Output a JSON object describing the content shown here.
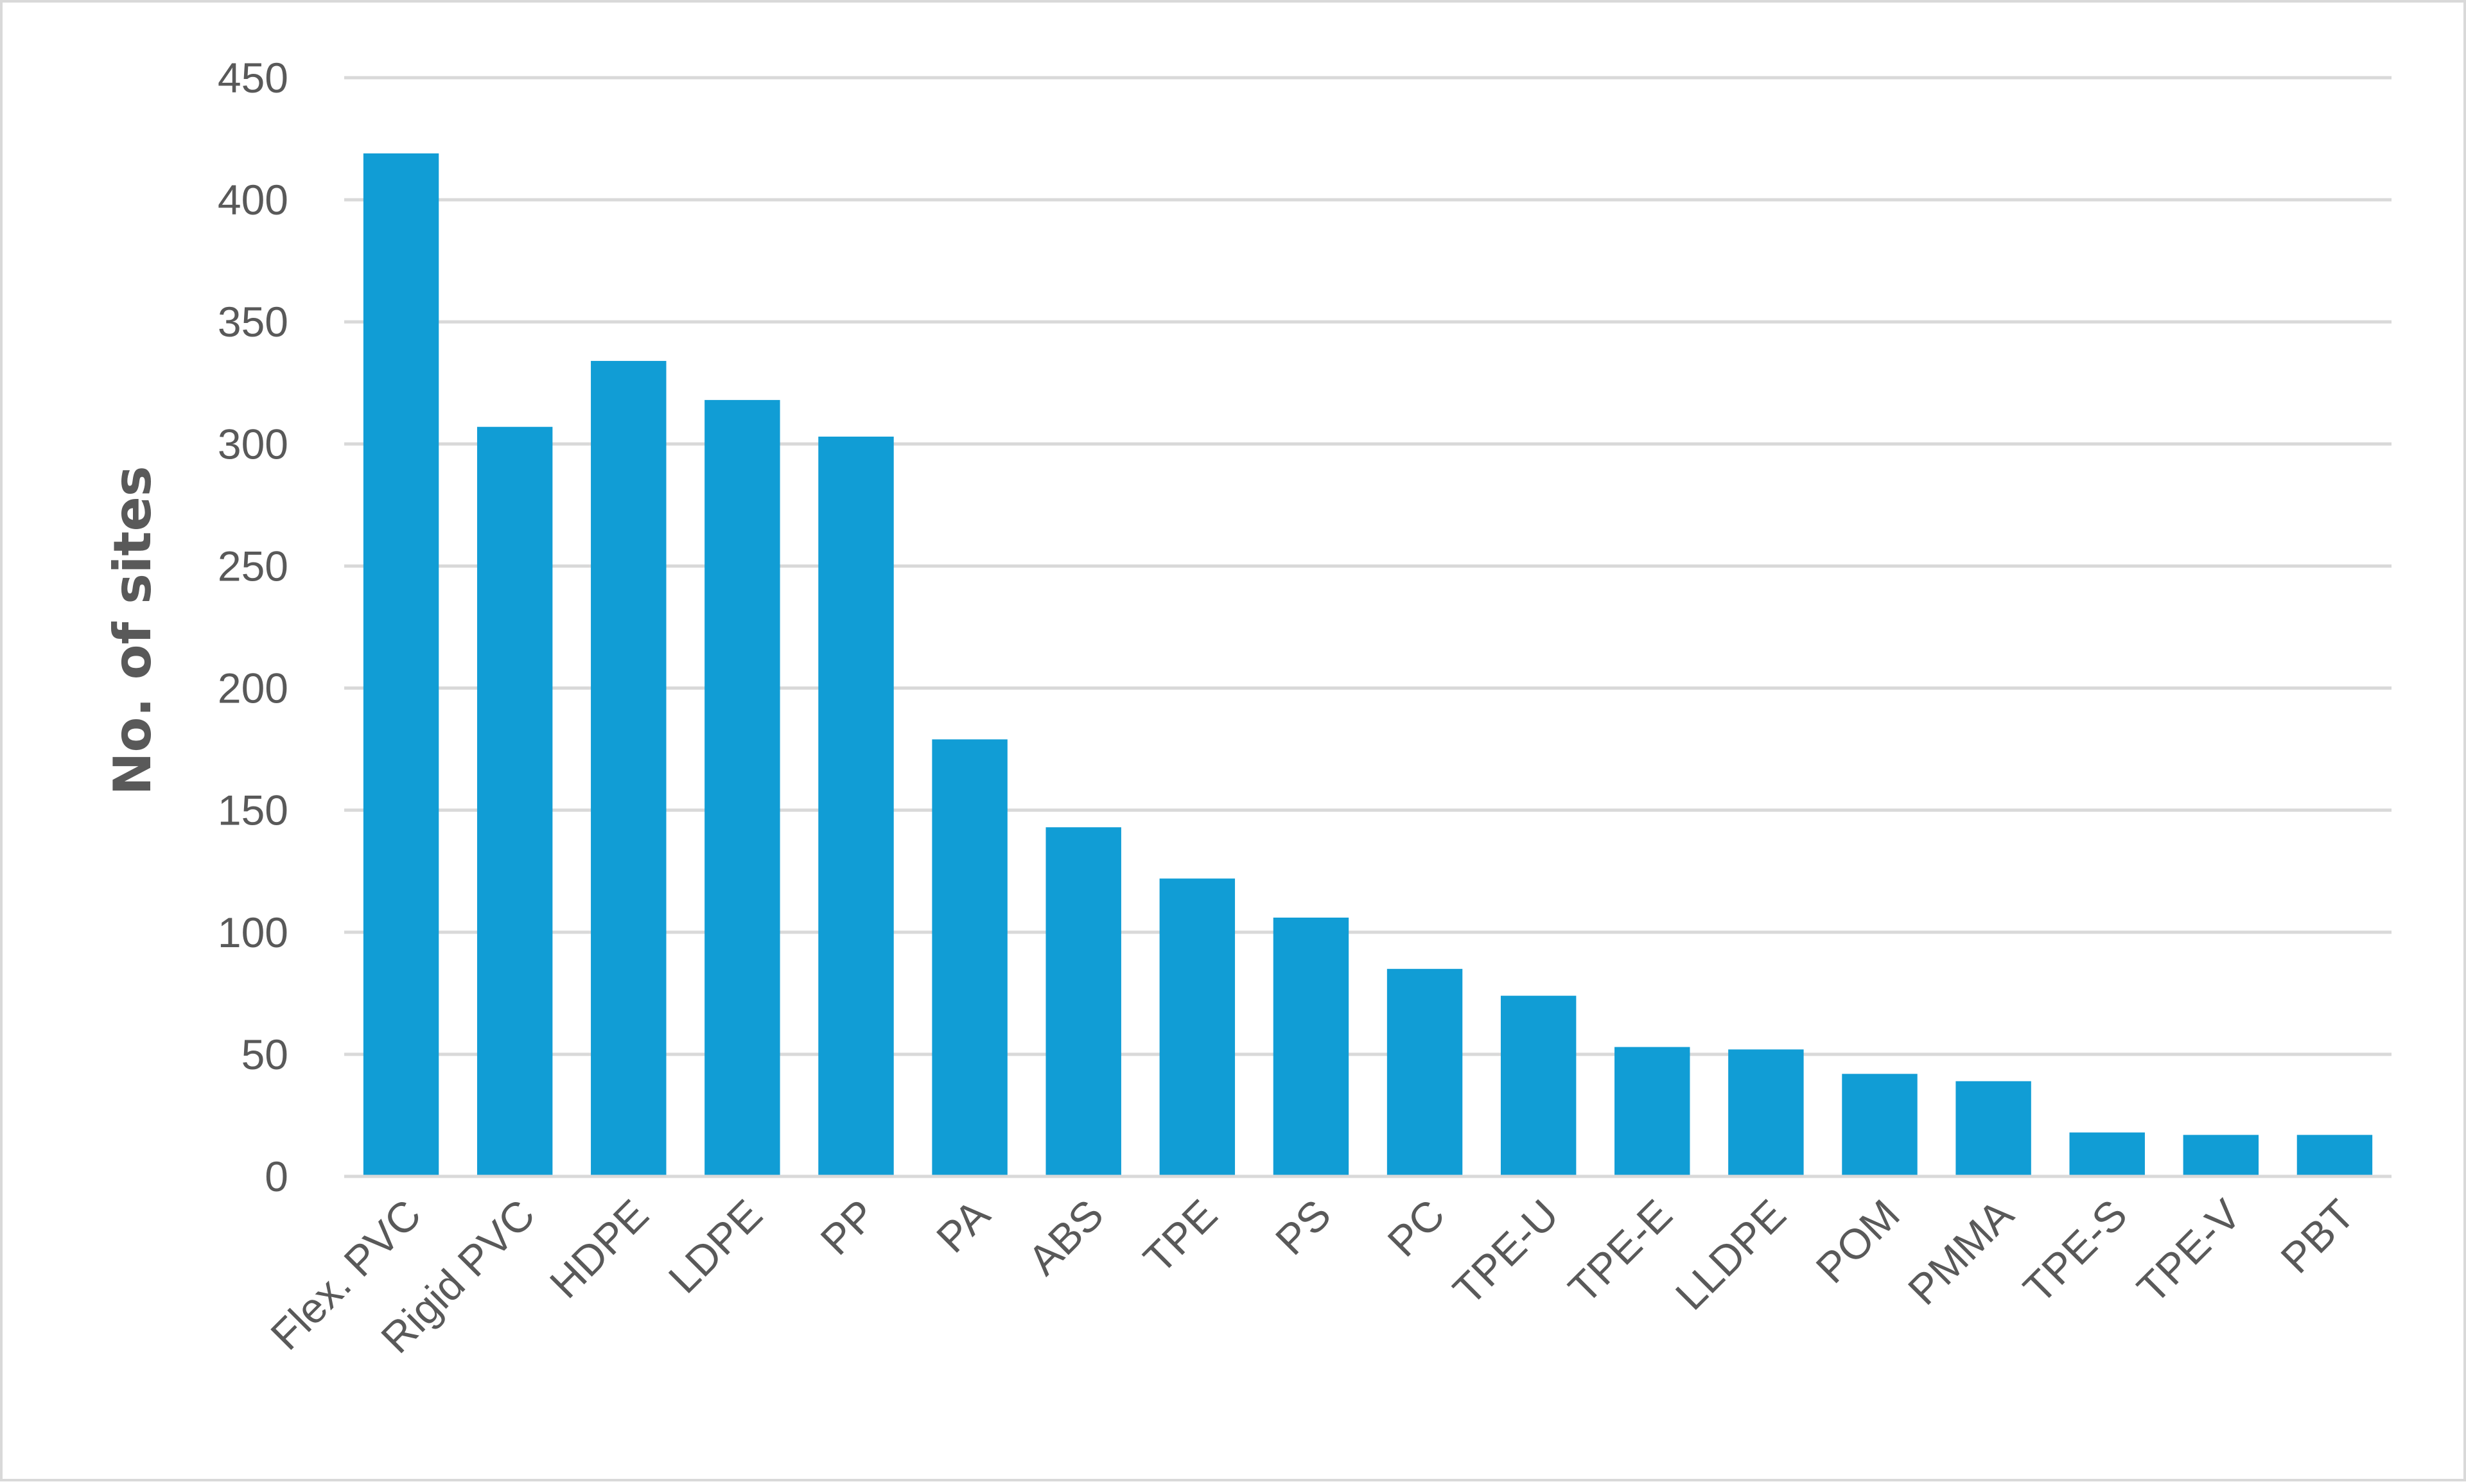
{
  "chart_data": {
    "type": "bar",
    "title": "",
    "xlabel": "",
    "ylabel": "No. of sites",
    "categories": [
      "Flex. PVC",
      "Rigid PVC",
      "HDPE",
      "LDPE",
      "PP",
      "PA",
      "ABS",
      "TPE",
      "PS",
      "PC",
      "TPE-U",
      "TPE-E",
      "LLDPE",
      "POM",
      "PMMA",
      "TPE-S",
      "TPE-V",
      "PBT"
    ],
    "values": [
      419,
      307,
      334,
      318,
      303,
      179,
      143,
      122,
      106,
      85,
      74,
      53,
      52,
      42,
      39,
      18,
      17,
      17
    ],
    "ylim": [
      0,
      450
    ],
    "yticks": [
      0,
      50,
      100,
      150,
      200,
      250,
      300,
      350,
      400,
      450
    ],
    "grid": true,
    "legend": "none",
    "bar_color": "#119dd5"
  }
}
